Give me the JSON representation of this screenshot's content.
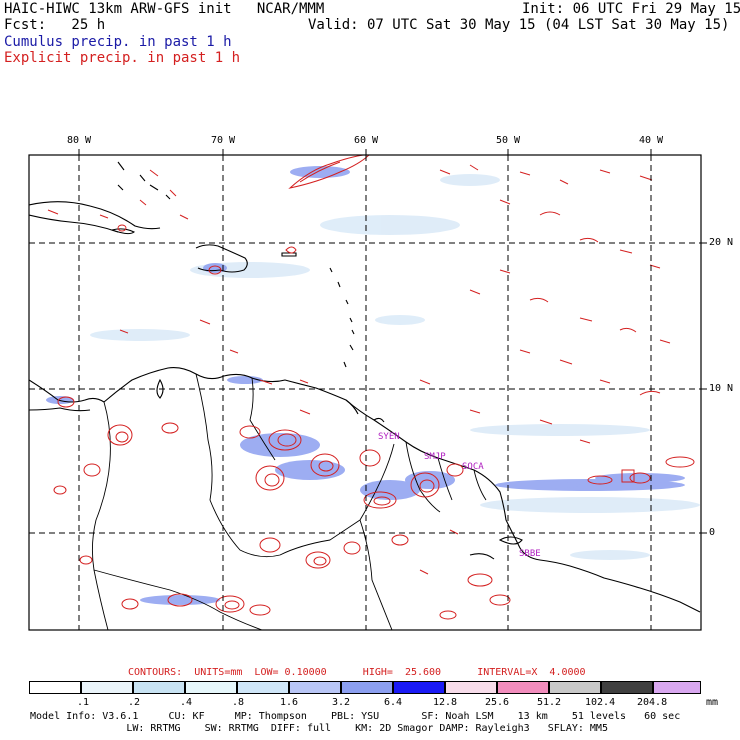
{
  "header": {
    "title": "HAIC-HIWC 13km ARW-GFS init   NCAR/MMM",
    "fcst": "Fcst:   25 h",
    "init": "Init: 06 UTC Fri 29 May 15",
    "valid": "Valid: 07 UTC Sat 30 May 15 (04 LST Sat 30 May 15)",
    "legend_cumulus": "Cumulus precip. in past 1 h",
    "legend_explicit": "Explicit precip. in past 1 h"
  },
  "colors": {
    "cumulus": "#1a1aa6",
    "explicit": "#d42020"
  },
  "map": {
    "lon_labels": [
      "80 W",
      "70 W",
      "60 W",
      "50 W",
      "40 W"
    ],
    "lat_labels": [
      "20 N",
      "10 N",
      "0"
    ],
    "stations": [
      "SYEN",
      "SMJP",
      "SOCA",
      "SBBE"
    ]
  },
  "contours": {
    "label": "CONTOURS:  UNITS=mm  LOW= 0.10000      HIGH=  25.600      INTERVAL=X  4.0000"
  },
  "colorbar": {
    "ticks": [
      ".1",
      ".2",
      ".4",
      ".8",
      "1.6",
      "3.2",
      "6.4",
      "12.8",
      "25.6",
      "51.2",
      "102.4",
      "204.8"
    ],
    "unit": "mm",
    "colors": [
      "#ffffff",
      "#eaf4fa",
      "#c8e3f3",
      "#e6f7fb",
      "#cfe6f8",
      "#b9c6f6",
      "#8c9ff0",
      "#5869f0",
      "#1a1af5",
      "#f7dcea",
      "#f28dbd",
      "#c8c8c8",
      "#404040",
      "#d9a8f0"
    ]
  },
  "model_info": {
    "line1": "Model Info: V3.6.1     CU: KF     MP: Thompson    PBL: YSU       SF: Noah LSM    13 km    51 levels   60 sec",
    "line2": "                LW: RRTMG    SW: RRTMG  DIFF: full    KM: 2D Smagor DAMP: Rayleigh3   SFLAY: MM5"
  }
}
